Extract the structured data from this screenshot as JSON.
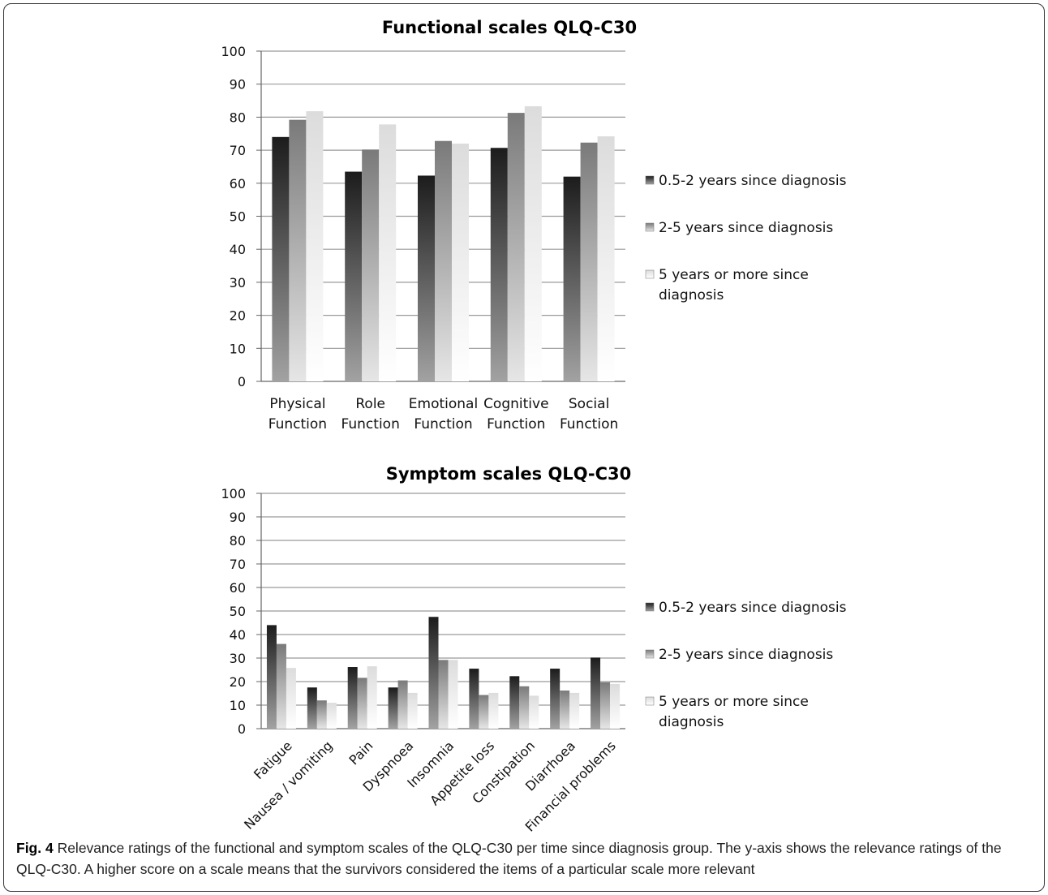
{
  "chart_data": [
    {
      "type": "bar",
      "title": "Functional scales QLQ-C30",
      "categories": [
        "Physical Function",
        "Role Function",
        "Emotional Function",
        "Cognitive Function",
        "Social Function"
      ],
      "category_lines": [
        [
          "Physical",
          "Function"
        ],
        [
          "Role",
          "Function"
        ],
        [
          "Emotional",
          "Function"
        ],
        [
          "Cognitive",
          "Function"
        ],
        [
          "Social",
          "Function"
        ]
      ],
      "ylim": [
        0,
        100
      ],
      "yticks": [
        "0",
        "10",
        "20",
        "30",
        "40",
        "50",
        "60",
        "70",
        "80",
        "90",
        "100"
      ],
      "series": [
        {
          "name": "0.5-2 years since diagnosis",
          "values": [
            74,
            63.5,
            62.3,
            70.7,
            62
          ]
        },
        {
          "name": "2-5 years since diagnosis",
          "values": [
            79.2,
            70.2,
            72.8,
            81.3,
            72.3
          ]
        },
        {
          "name": "5 years or more since diagnosis",
          "values": [
            81.8,
            77.8,
            72,
            83.3,
            74.2
          ]
        }
      ],
      "legend_lines": [
        [
          "0.5-2 years since diagnosis"
        ],
        [
          "2-5 years since diagnosis"
        ],
        [
          "5 years or more since",
          "diagnosis"
        ]
      ],
      "legend": "right",
      "grid": true
    },
    {
      "type": "bar",
      "title": "Symptom scales QLQ-C30",
      "categories": [
        "Fatigue",
        "Nausea / vomiting",
        "Pain",
        "Dyspnoea",
        "Insomnia",
        "Appetite loss",
        "Constipation",
        "Diarrhoea",
        "Financial problems"
      ],
      "ylim": [
        0,
        100
      ],
      "yticks": [
        "0",
        "10",
        "20",
        "30",
        "40",
        "50",
        "60",
        "70",
        "80",
        "90",
        "100"
      ],
      "series": [
        {
          "name": "0.5-2 years since diagnosis",
          "values": [
            44,
            17.5,
            26.2,
            17.5,
            47.5,
            25.5,
            22.3,
            25.5,
            30.2
          ]
        },
        {
          "name": "2-5 years since diagnosis",
          "values": [
            36,
            12,
            21.6,
            20.5,
            29.2,
            14.3,
            18,
            16.2,
            19.7
          ]
        },
        {
          "name": "5 years or more since diagnosis",
          "values": [
            25.8,
            11,
            26.5,
            15.2,
            29.2,
            15.2,
            14,
            15.2,
            19
          ]
        }
      ],
      "legend_lines": [
        [
          "0.5-2 years since diagnosis"
        ],
        [
          "2-5 years since diagnosis"
        ],
        [
          "5 years or more since",
          "diagnosis"
        ]
      ],
      "legend": "right",
      "grid": true
    }
  ],
  "caption": {
    "label": "Fig. 4",
    "text": " Relevance ratings of the functional and symptom scales of the QLQ-C30 per time since diagnosis group. The y-axis shows the relevance ratings of the QLQ-C30. A higher score on a scale means that the survivors considered the items of a particular scale more relevant"
  },
  "colors": {
    "series_dark": "#2b2b2b",
    "series_mid": "#8a8a8a",
    "series_light": "#e4e4e4",
    "grid": "#9a9a9a"
  }
}
